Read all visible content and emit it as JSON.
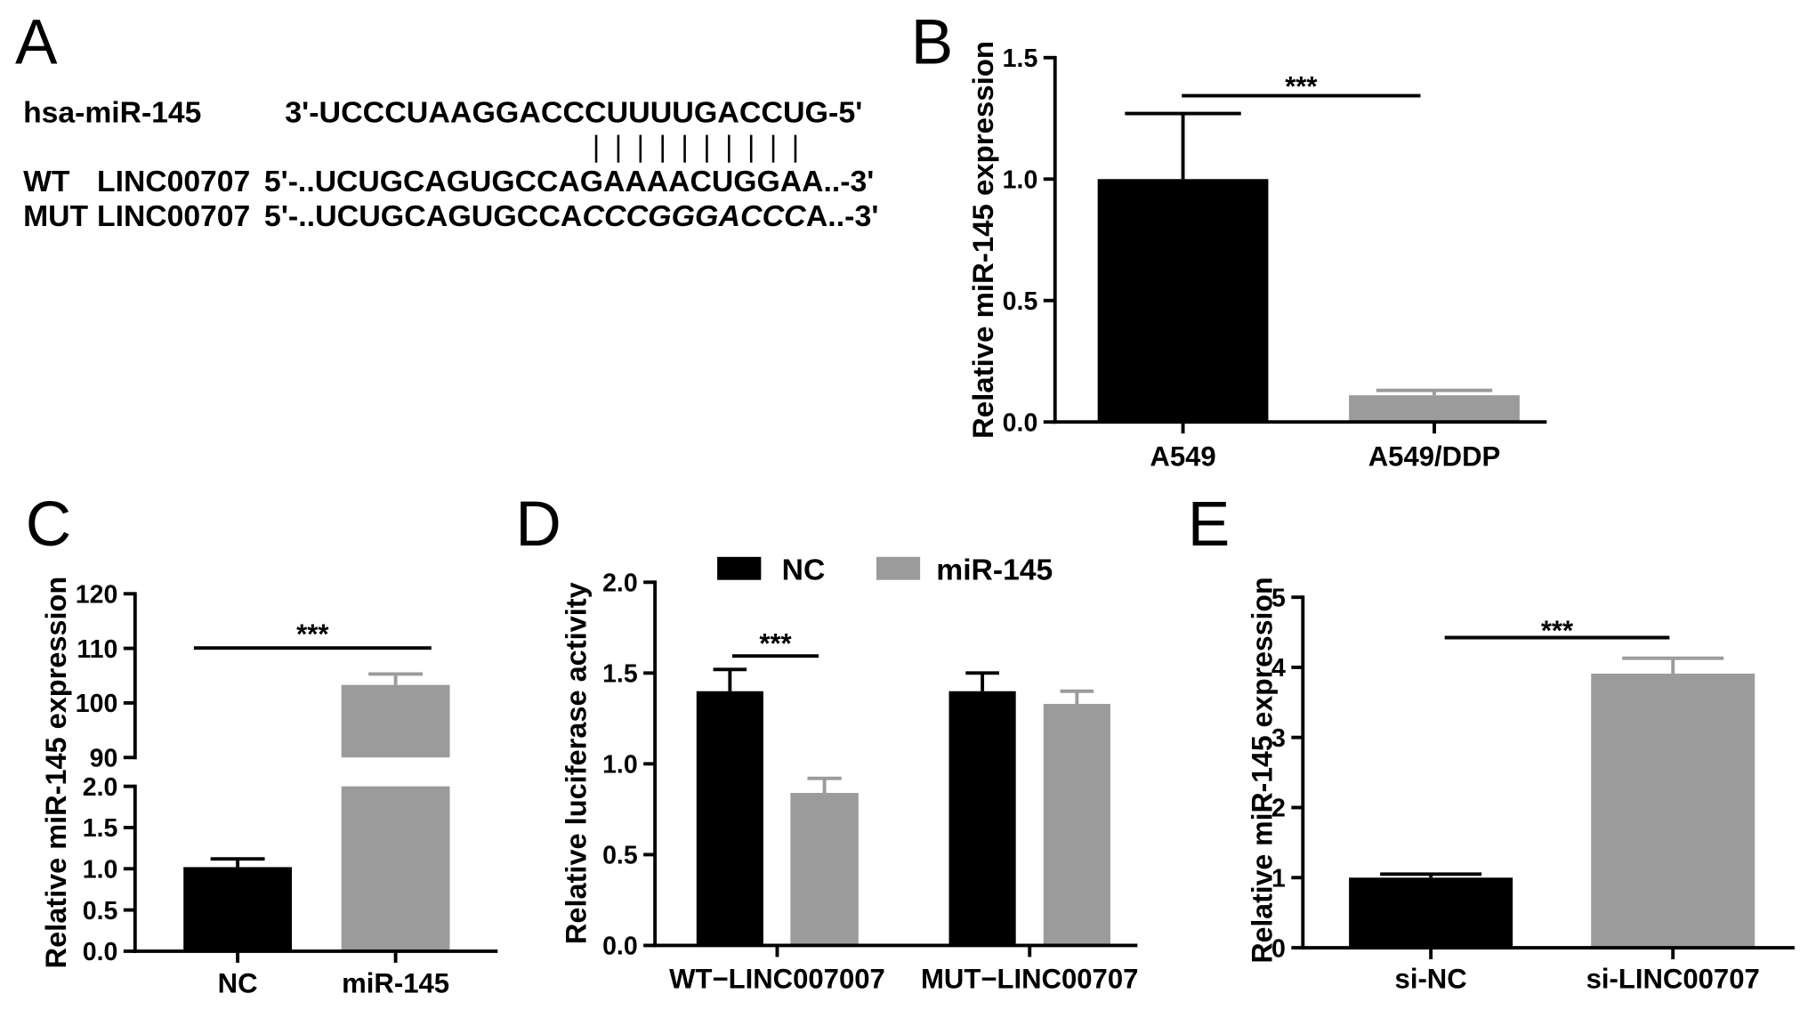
{
  "panel_a": {
    "label": "A",
    "mirna_name": "hsa-miR-145",
    "mirna_seq": "3'-UCCCUAAGGACCCUUUUGACCUG-5'",
    "wt_tag": "WT",
    "wt_name": "LINC00707",
    "wt_seq": "5'-..UCUGCAGUGCCAGAAAACUGGAA..-3'",
    "mut_tag": "MUT",
    "mut_name": "LINC00707",
    "mut_seq_prefix": "5'-..UCUGCAGUGCCA",
    "mut_seq_mutated": "CCCGGGACCC",
    "mut_seq_suffix": "A..-3'"
  },
  "chart_data": [
    {
      "panel": "B",
      "type": "bar",
      "ylabel": "Relative miR-145 expression",
      "categories": [
        "A549",
        "A549/DDP"
      ],
      "values": [
        1.0,
        0.11
      ],
      "errors": [
        0.27,
        0.02
      ],
      "bar_colors": [
        "#000000",
        "#9b9b9b"
      ],
      "ylim": [
        0,
        1.5
      ],
      "yticks": [
        "0.0",
        "0.5",
        "1.0",
        "1.5"
      ],
      "grid": false,
      "significance": [
        {
          "between": [
            0,
            1
          ],
          "label": "***"
        }
      ]
    },
    {
      "panel": "C",
      "type": "bar",
      "ylabel": "Relative miR-145 expression",
      "categories": [
        "NC",
        "miR-145"
      ],
      "values": [
        1.02,
        103.3
      ],
      "errors": [
        0.1,
        2.0
      ],
      "bar_colors": [
        "#000000",
        "#9b9b9b"
      ],
      "ylim": [
        [
          0,
          2.0
        ],
        [
          90,
          120
        ]
      ],
      "axis_break": true,
      "yticks": [
        "0.0",
        "0.5",
        "1.0",
        "1.5",
        "2.0",
        "90",
        "100",
        "110",
        "120"
      ],
      "grid": false,
      "significance": [
        {
          "between": [
            0,
            1
          ],
          "label": "***"
        }
      ]
    },
    {
      "panel": "D",
      "type": "bar",
      "ylabel": "Relative luciferase activity",
      "categories": [
        "WT−LINC007007",
        "MUT−LINC00707"
      ],
      "series": [
        {
          "name": "NC",
          "color": "#000000",
          "values": [
            1.4,
            1.4
          ],
          "errors": [
            0.12,
            0.1
          ]
        },
        {
          "name": "miR-145",
          "color": "#9b9b9b",
          "values": [
            0.84,
            1.33
          ],
          "errors": [
            0.08,
            0.07
          ]
        }
      ],
      "ylim": [
        0,
        2.0
      ],
      "yticks": [
        "0.0",
        "0.5",
        "1.0",
        "1.5",
        "2.0"
      ],
      "grid": false,
      "legend": "top",
      "significance": [
        {
          "category": 0,
          "between_series": [
            0,
            1
          ],
          "label": "***"
        }
      ]
    },
    {
      "panel": "E",
      "type": "bar",
      "ylabel": "Relative miR-145 expression",
      "categories": [
        "si-NC",
        "si-LINC00707"
      ],
      "values": [
        1.0,
        3.91
      ],
      "errors": [
        0.05,
        0.22
      ],
      "bar_colors": [
        "#000000",
        "#9b9b9b"
      ],
      "ylim": [
        0,
        5
      ],
      "yticks": [
        "0",
        "1",
        "2",
        "3",
        "4",
        "5"
      ],
      "grid": false,
      "significance": [
        {
          "between": [
            0,
            1
          ],
          "label": "***"
        }
      ]
    }
  ]
}
